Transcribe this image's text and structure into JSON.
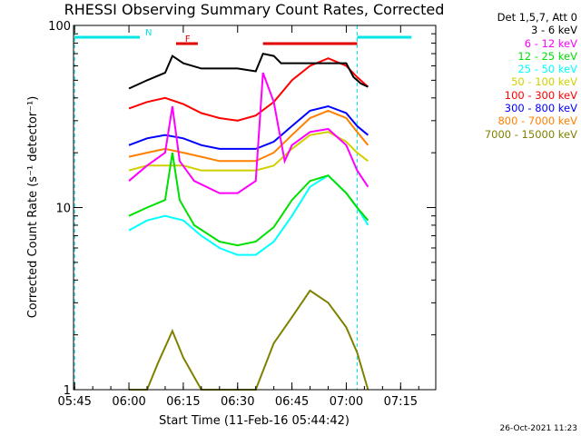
{
  "chart_data": {
    "type": "line",
    "title": "RHESSI Observing Summary Count Rates, Corrected",
    "xlabel": "Start Time (11-Feb-16 05:44:42)",
    "ylabel": "Corrected Count Rate (s⁻¹ detector⁻¹)",
    "yscale": "log",
    "ylim": [
      1,
      100
    ],
    "xlim": [
      "05:44:42",
      "07:24:42"
    ],
    "x_ticks": [
      "05:45",
      "06:00",
      "06:15",
      "06:30",
      "06:45",
      "07:00",
      "07:15"
    ],
    "y_ticks": [
      "1",
      "10",
      "100"
    ],
    "grid": false,
    "legend_position": "right",
    "legend_header": "Det 1,5,7, Att 0",
    "flags": [
      {
        "label": "N",
        "color": "#00e5e5",
        "spans": [
          [
            "05:45",
            "06:03"
          ],
          [
            "07:03",
            "07:18"
          ]
        ]
      },
      {
        "label": "F",
        "color": "#e00000",
        "spans": [
          [
            "06:13",
            "06:19"
          ],
          [
            "06:37",
            "07:03"
          ]
        ]
      }
    ],
    "series": [
      {
        "name": "3 - 6 keV",
        "color": "#000000",
        "x": [
          "06:00",
          "06:05",
          "06:10",
          "06:12",
          "06:15",
          "06:20",
          "06:25",
          "06:30",
          "06:35",
          "06:37",
          "06:40",
          "06:42",
          "06:45",
          "06:50",
          "06:55",
          "07:00",
          "07:02",
          "07:04",
          "07:06"
        ],
        "values": [
          45,
          50,
          55,
          68,
          62,
          58,
          58,
          58,
          56,
          70,
          68,
          62,
          62,
          62,
          62,
          62,
          52,
          48,
          46
        ]
      },
      {
        "name": "6 - 12 keV",
        "color": "#ff00ff",
        "x": [
          "06:00",
          "06:05",
          "06:10",
          "06:12",
          "06:14",
          "06:18",
          "06:25",
          "06:30",
          "06:35",
          "06:37",
          "06:40",
          "06:43",
          "06:45",
          "06:50",
          "06:55",
          "07:00",
          "07:03",
          "07:06"
        ],
        "values": [
          14,
          17,
          20,
          36,
          18,
          14,
          12,
          12,
          14,
          55,
          38,
          18,
          22,
          26,
          27,
          22,
          16,
          13
        ]
      },
      {
        "name": "12 - 25 keV",
        "color": "#00e000",
        "x": [
          "06:00",
          "06:05",
          "06:10",
          "06:12",
          "06:14",
          "06:18",
          "06:25",
          "06:30",
          "06:35",
          "06:40",
          "06:45",
          "06:50",
          "06:55",
          "07:00",
          "07:03",
          "07:06"
        ],
        "values": [
          9,
          10,
          11,
          20,
          11,
          8,
          6.5,
          6.2,
          6.5,
          7.8,
          11,
          14,
          15,
          12,
          10,
          8.5
        ]
      },
      {
        "name": "25 - 50 keV",
        "color": "#00ffff",
        "x": [
          "06:00",
          "06:05",
          "06:10",
          "06:15",
          "06:20",
          "06:25",
          "06:30",
          "06:35",
          "06:40",
          "06:45",
          "06:50",
          "06:55",
          "07:00",
          "07:03",
          "07:06"
        ],
        "values": [
          7.5,
          8.5,
          9,
          8.5,
          7,
          6,
          5.5,
          5.5,
          6.5,
          9,
          13,
          15,
          12,
          10,
          8
        ]
      },
      {
        "name": "50 - 100 keV",
        "color": "#d0d000",
        "x": [
          "06:00",
          "06:05",
          "06:10",
          "06:15",
          "06:20",
          "06:25",
          "06:30",
          "06:35",
          "06:40",
          "06:45",
          "06:50",
          "06:55",
          "07:00",
          "07:03",
          "07:06"
        ],
        "values": [
          16,
          17,
          17,
          17,
          16,
          16,
          16,
          16,
          17,
          21,
          25,
          26,
          23,
          20,
          18
        ]
      },
      {
        "name": "100 - 300 keV",
        "color": "#ff0000",
        "x": [
          "06:00",
          "06:05",
          "06:10",
          "06:15",
          "06:20",
          "06:25",
          "06:30",
          "06:35",
          "06:40",
          "06:45",
          "06:50",
          "06:55",
          "07:00",
          "07:03",
          "07:06"
        ],
        "values": [
          35,
          38,
          40,
          37,
          33,
          31,
          30,
          32,
          38,
          50,
          60,
          66,
          60,
          52,
          46
        ]
      },
      {
        "name": "300 - 800 keV",
        "color": "#0000ff",
        "x": [
          "06:00",
          "06:05",
          "06:10",
          "06:15",
          "06:20",
          "06:25",
          "06:30",
          "06:35",
          "06:40",
          "06:45",
          "06:50",
          "06:55",
          "07:00",
          "07:03",
          "07:06"
        ],
        "values": [
          22,
          24,
          25,
          24,
          22,
          21,
          21,
          21,
          23,
          28,
          34,
          36,
          33,
          28,
          25
        ]
      },
      {
        "name": "800 - 7000 keV",
        "color": "#ff8000",
        "x": [
          "06:00",
          "06:05",
          "06:10",
          "06:15",
          "06:20",
          "06:25",
          "06:30",
          "06:35",
          "06:40",
          "06:45",
          "06:50",
          "06:55",
          "07:00",
          "07:03",
          "07:06"
        ],
        "values": [
          19,
          20,
          21,
          20,
          19,
          18,
          18,
          18,
          20,
          25,
          31,
          34,
          31,
          26,
          22
        ]
      },
      {
        "name": "7000 - 15000 keV",
        "color": "#808000",
        "x": [
          "06:00",
          "06:05",
          "06:08",
          "06:12",
          "06:15",
          "06:20",
          "06:25",
          "06:30",
          "06:35",
          "06:40",
          "06:45",
          "06:50",
          "06:55",
          "07:00",
          "07:03",
          "07:06"
        ],
        "values": [
          1,
          1,
          1.4,
          2.1,
          1.5,
          1,
          1,
          1,
          1,
          1.8,
          2.5,
          3.5,
          3,
          2.2,
          1.6,
          1
        ]
      }
    ]
  },
  "footer": {
    "datestamp": "26-Oct-2021 11:23"
  }
}
